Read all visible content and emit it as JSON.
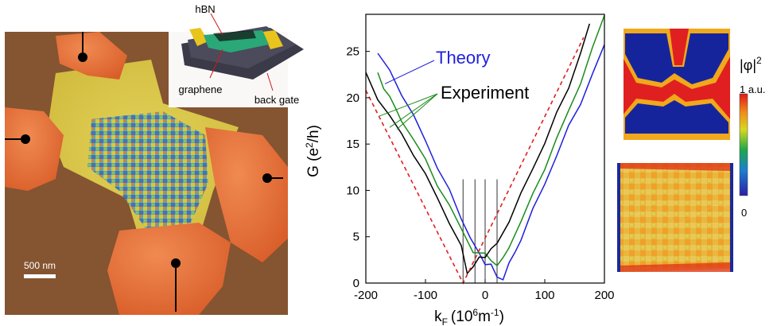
{
  "left_panel": {
    "scale_bar_label": "500 nm",
    "inset": {
      "labels": {
        "hbn": "hBN",
        "graphene": "graphene",
        "back_gate": "back gate"
      }
    }
  },
  "chart_data": {
    "type": "line",
    "title": "",
    "xlabel": "k",
    "xlabel_sub": "F",
    "xlabel_unit": "(10",
    "xlabel_unit_sup": "6",
    "xlabel_unit_tail": "m",
    "xlabel_unit_tail_sup": "-1",
    "xlabel_close": ")",
    "ylabel": "G (e",
    "ylabel_sup": "2",
    "ylabel_tail": "/h)",
    "xlim": [
      -200,
      200
    ],
    "ylim": [
      0,
      29
    ],
    "xticks": [
      -200,
      -100,
      0,
      100,
      200
    ],
    "xtick_labels": [
      "-200",
      "-100",
      "0",
      "100",
      "200"
    ],
    "yticks": [
      0,
      5,
      10,
      15,
      20,
      25
    ],
    "ytick_labels": [
      "0",
      "5",
      "10",
      "15",
      "20",
      "25"
    ],
    "vlines_x": [
      -37,
      -17,
      0,
      20
    ],
    "vlines_top": 11.2,
    "annotations": [
      {
        "text": "Theory",
        "color": "#1f1fdc"
      },
      {
        "text": "Experiment",
        "color": "#000000"
      }
    ],
    "series": [
      {
        "color": "#1f1fdc",
        "style": "solid",
        "x": [
          -180,
          -160,
          -140,
          -120,
          -100,
          -80,
          -60,
          -40,
          -25,
          -10,
          0,
          10,
          20,
          30,
          40,
          50,
          60,
          80,
          100,
          120,
          140,
          160,
          180,
          200
        ],
        "y": [
          24.8,
          22.8,
          20.5,
          18.0,
          15.3,
          12.6,
          9.9,
          7.0,
          5.0,
          3.0,
          2.2,
          2.0,
          0.5,
          0.6,
          2.0,
          3.3,
          4.8,
          7.8,
          10.8,
          13.8,
          16.8,
          19.5,
          22.5,
          25.6
        ]
      },
      {
        "color": "#1a8c1a",
        "style": "solid",
        "x": [
          -180,
          -170,
          -160,
          -150,
          -140,
          -120,
          -100,
          -80,
          -60,
          -40,
          -20,
          0,
          10,
          20,
          30,
          40,
          60,
          80,
          100,
          120,
          140,
          160,
          180,
          200
        ],
        "y": [
          22.5,
          21.0,
          20.3,
          18.6,
          17.6,
          15.5,
          13.2,
          10.7,
          8.3,
          5.8,
          3.5,
          3.0,
          2.5,
          2.0,
          2.5,
          4.0,
          6.6,
          9.5,
          12.5,
          15.5,
          18.6,
          21.7,
          25.2,
          29.0
        ]
      },
      {
        "color": "#000000",
        "style": "solid",
        "x": [
          -200,
          -180,
          -160,
          -140,
          -120,
          -100,
          -80,
          -60,
          -40,
          -30,
          -20,
          -10,
          0,
          10,
          20,
          40,
          60,
          80,
          100,
          120,
          140,
          160,
          175
        ],
        "y": [
          22.5,
          20.0,
          18.0,
          16.0,
          14.0,
          11.6,
          9.2,
          6.6,
          3.8,
          1.2,
          1.8,
          2.6,
          3.0,
          3.6,
          4.2,
          6.8,
          9.5,
          12.4,
          15.2,
          18.2,
          21.2,
          24.8,
          27.8
        ]
      },
      {
        "color": "#e02020",
        "style": "dashed",
        "x": [
          -200,
          -37,
          165
        ],
        "y": [
          20.8,
          0,
          26.5
        ]
      }
    ]
  },
  "right_panel": {
    "colorbar_title": "|φ|",
    "colorbar_title_sup": "2",
    "colorbar_max_label": "1 a.u.",
    "colorbar_min_label": "0"
  }
}
